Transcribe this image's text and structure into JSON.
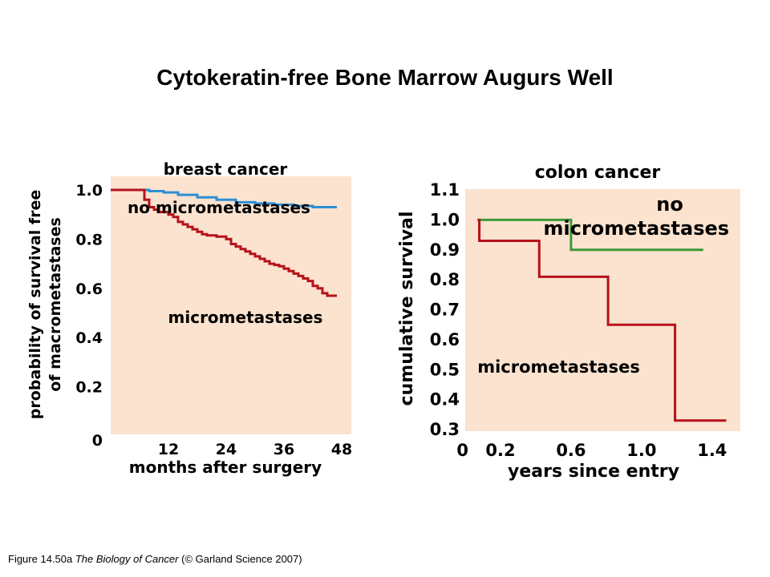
{
  "slide": {
    "title": "Cytokeratin-free Bone Marrow Augurs Well",
    "footer": {
      "fig": "Figure 14.50a",
      "book": "The Biology of Cancer",
      "credit": "(© Garland Science 2007)"
    }
  },
  "colors": {
    "panel": "#fbe3cf",
    "red": "#b5121b",
    "blue": "#2d8fd5",
    "green": "#3d9a35"
  },
  "chart_data": [
    {
      "type": "line",
      "title": "breast cancer",
      "xlabel": "months after surgery",
      "ylabel": [
        "probability of survival free",
        "of macrometastases"
      ],
      "xlim": [
        0,
        48
      ],
      "ylim": [
        0,
        1.0
      ],
      "xticks": [
        {
          "v": 12,
          "t": "12"
        },
        {
          "v": 24,
          "t": "24"
        },
        {
          "v": 36,
          "t": "36"
        },
        {
          "v": 48,
          "t": "48"
        }
      ],
      "yticks": [
        {
          "v": 1.0,
          "t": "1.0"
        },
        {
          "v": 0.8,
          "t": "0.8"
        },
        {
          "v": 0.6,
          "t": "0.6"
        },
        {
          "v": 0.4,
          "t": "0.4"
        },
        {
          "v": 0.2,
          "t": "0.2"
        }
      ],
      "origin_label": "0",
      "series": [
        {
          "name": "no micrometastases",
          "color": "blue",
          "step": true,
          "x": [
            0,
            8,
            11,
            14,
            18,
            22,
            26,
            30,
            34,
            38,
            42,
            47
          ],
          "y": [
            1.0,
            0.995,
            0.99,
            0.98,
            0.97,
            0.96,
            0.95,
            0.945,
            0.94,
            0.935,
            0.93,
            0.93
          ]
        },
        {
          "name": "micrometastases",
          "color": "red",
          "step": true,
          "x": [
            0,
            7,
            8,
            9,
            10,
            12,
            13,
            14,
            15,
            16,
            17,
            18,
            19,
            20,
            22,
            24,
            25,
            26,
            27,
            28,
            29,
            30,
            31,
            32,
            33,
            34,
            35,
            36,
            37,
            38,
            39,
            40,
            41,
            42,
            43,
            44,
            45,
            47
          ],
          "y": [
            1.0,
            0.96,
            0.93,
            0.92,
            0.91,
            0.9,
            0.89,
            0.87,
            0.86,
            0.85,
            0.84,
            0.83,
            0.82,
            0.815,
            0.81,
            0.8,
            0.78,
            0.77,
            0.76,
            0.75,
            0.74,
            0.73,
            0.72,
            0.71,
            0.7,
            0.695,
            0.69,
            0.68,
            0.67,
            0.66,
            0.65,
            0.64,
            0.63,
            0.61,
            0.6,
            0.58,
            0.57,
            0.57
          ]
        }
      ],
      "annotations": [
        {
          "text": "no micrometastases",
          "at": [
            22.5,
            0.905
          ]
        },
        {
          "text": "micrometastases",
          "at": [
            28,
            0.46
          ]
        }
      ]
    },
    {
      "type": "line",
      "title": "colon cancer",
      "xlabel": "years since entry",
      "ylabel": [
        "cumulative survival"
      ],
      "xlim": [
        0,
        1.56
      ],
      "ylim": [
        0.3,
        1.1
      ],
      "xticks": [
        {
          "v": 0.2,
          "t": "0.2"
        },
        {
          "v": 0.6,
          "t": "0.6"
        },
        {
          "v": 1.0,
          "t": "1.0"
        },
        {
          "v": 1.4,
          "t": "1.4"
        }
      ],
      "yticks": [
        {
          "v": 1.1,
          "t": "1.1"
        },
        {
          "v": 1.0,
          "t": "1.0"
        },
        {
          "v": 0.9,
          "t": "0.9"
        },
        {
          "v": 0.8,
          "t": "0.8"
        },
        {
          "v": 0.7,
          "t": "0.7"
        },
        {
          "v": 0.6,
          "t": "0.6"
        },
        {
          "v": 0.5,
          "t": "0.5"
        },
        {
          "v": 0.4,
          "t": "0.4"
        },
        {
          "v": 0.3,
          "t": "0.3"
        }
      ],
      "origin_label": "0",
      "series": [
        {
          "name": "no micrometastases",
          "color": "green",
          "step": true,
          "x": [
            0.07,
            0.6,
            1.35
          ],
          "y": [
            1.0,
            0.9,
            0.9
          ]
        },
        {
          "name": "micrometastases",
          "color": "red",
          "step": true,
          "x": [
            0.07,
            0.08,
            0.42,
            0.81,
            1.19,
            1.48
          ],
          "y": [
            1.0,
            0.93,
            0.81,
            0.65,
            0.33,
            0.33
          ]
        }
      ],
      "annotations": [
        {
          "text": "no",
          "at": [
            1.16,
            1.03
          ],
          "size": 24
        },
        {
          "text": "micrometastases",
          "at": [
            0.97,
            0.95
          ],
          "size": 24
        },
        {
          "text": "micrometastases",
          "at": [
            0.53,
            0.49
          ],
          "size": 21
        }
      ]
    }
  ]
}
